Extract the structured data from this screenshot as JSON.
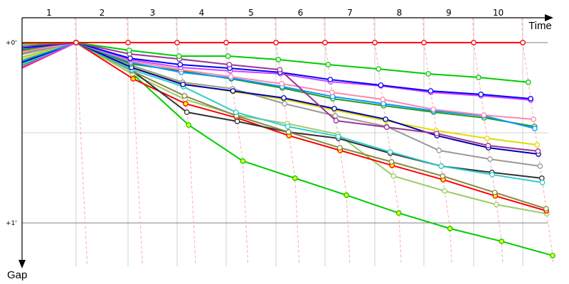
{
  "chart_data": {
    "type": "line",
    "xlabel": "Time",
    "ylabel": "Gap",
    "x_tick_labels": [
      "1",
      "2",
      "3",
      "4",
      "5",
      "6",
      "7",
      "8",
      "9",
      "10"
    ],
    "y_tick_labels": [
      "+0'",
      "+1'"
    ],
    "y_unit": "minutes",
    "ylim": [
      0,
      1.25
    ],
    "laps": [
      0,
      1,
      2,
      3,
      4,
      5,
      6,
      7,
      8,
      9,
      10
    ],
    "grid": true,
    "series": [
      {
        "color": "#ff0000",
        "marker_fill": "#ffffff",
        "gaps": [
          0,
          0,
          0,
          0,
          0,
          0,
          0,
          0,
          0,
          0,
          0
        ]
      },
      {
        "color": "#00cc00",
        "marker_fill": "#ffffff",
        "gaps": [
          0.008,
          0,
          0.043,
          0.075,
          0.075,
          0.094,
          0.122,
          0.146,
          0.173,
          0.193,
          0.22
        ]
      },
      {
        "color": "#993399",
        "marker_fill": "#ffffff",
        "gaps": [
          0.02,
          0,
          0.063,
          0.091,
          0.122,
          0.15,
          0.433,
          0.469,
          0.504,
          0.571,
          0.602
        ]
      },
      {
        "color": "#0000ff",
        "marker_fill": "#ffffff",
        "gaps": [
          0.03,
          0,
          0.087,
          0.122,
          0.142,
          0.165,
          0.205,
          0.236,
          0.268,
          0.287,
          0.311
        ]
      },
      {
        "color": "#cc44ff",
        "marker_fill": "#ffffff",
        "gaps": [
          0.135,
          0,
          0.094,
          0.138,
          0.157,
          0.173,
          0.217,
          0.24,
          0.276,
          0.295,
          0.319
        ]
      },
      {
        "color": "#ff88aa",
        "marker_fill": "#ffffff",
        "gaps": [
          0.05,
          0,
          0.102,
          0.15,
          0.189,
          0.228,
          0.276,
          0.315,
          0.37,
          0.402,
          0.425
        ]
      },
      {
        "color": "#0099ff",
        "marker_fill": "#ffffff",
        "gaps": [
          0.1,
          0,
          0.11,
          0.165,
          0.197,
          0.244,
          0.299,
          0.339,
          0.378,
          0.406,
          0.476
        ]
      },
      {
        "color": "#229922",
        "marker_fill": "#ffffff",
        "gaps": [
          0.04,
          0,
          0.118,
          0.157,
          0.201,
          0.252,
          0.311,
          0.35,
          0.386,
          0.417,
          0.465
        ]
      },
      {
        "color": "#0000aa",
        "marker_fill": "#ffffff",
        "gaps": [
          0.11,
          0,
          0.138,
          0.232,
          0.268,
          0.307,
          0.366,
          0.425,
          0.516,
          0.583,
          0.618
        ]
      },
      {
        "color": "#999999",
        "marker_fill": "#ffffff",
        "gaps": [
          0.065,
          0,
          0.126,
          0.22,
          0.256,
          0.339,
          0.406,
          0.465,
          0.598,
          0.646,
          0.685
        ]
      },
      {
        "color": "#dddd00",
        "marker_fill": "#ffffff",
        "gaps": [
          0.09,
          0,
          0.134,
          0.228,
          0.272,
          0.315,
          0.374,
          0.433,
          0.488,
          0.531,
          0.567
        ]
      },
      {
        "color": "#33cccc",
        "marker_fill": "#ffffff",
        "gaps": [
          0.12,
          0,
          0.15,
          0.244,
          0.386,
          0.465,
          0.52,
          0.606,
          0.685,
          0.732,
          0.776
        ]
      },
      {
        "color": "#888844",
        "marker_fill": "#ffffff",
        "gaps": [
          0.06,
          0,
          0.157,
          0.295,
          0.406,
          0.496,
          0.583,
          0.661,
          0.74,
          0.831,
          0.921
        ]
      },
      {
        "color": "#333333",
        "marker_fill": "#ffffff",
        "gaps": [
          0.045,
          0,
          0.154,
          0.386,
          0.437,
          0.496,
          0.531,
          0.614,
          0.685,
          0.72,
          0.752
        ]
      },
      {
        "color": "#ff0000",
        "marker_fill": "#ffff00",
        "gaps": [
          0.14,
          0,
          0.201,
          0.339,
          0.417,
          0.516,
          0.598,
          0.681,
          0.76,
          0.85,
          0.933
        ]
      },
      {
        "color": "#99cc66",
        "marker_fill": "#ffffff",
        "gaps": [
          0.08,
          0,
          0.173,
          0.315,
          0.402,
          0.449,
          0.508,
          0.74,
          0.823,
          0.898,
          0.949
        ]
      },
      {
        "color": "#00cc00",
        "marker_fill": "#ffff00",
        "gaps": [
          0.125,
          0,
          0.173,
          0.457,
          0.657,
          0.752,
          0.846,
          0.945,
          1.031,
          1.102,
          1.181
        ]
      }
    ]
  }
}
